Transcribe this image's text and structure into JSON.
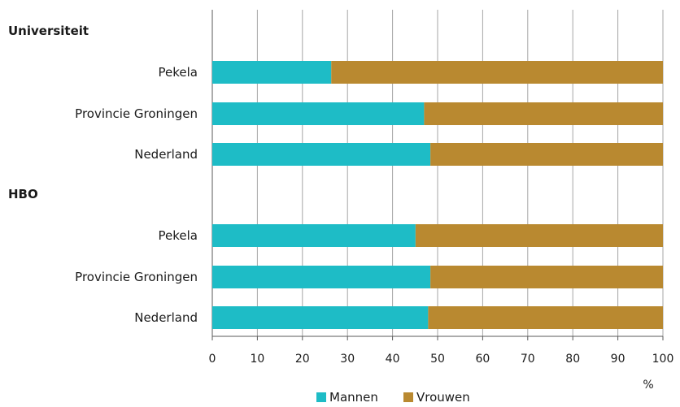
{
  "chart_data": {
    "type": "bar",
    "orientation": "horizontal",
    "stacked": true,
    "groups": [
      {
        "label": "Universiteit",
        "categories": [
          "Pekela",
          "Provincie Groningen",
          "Nederland"
        ],
        "series": [
          {
            "name": "Mannen",
            "values": [
              26.4,
              47.0,
              48.4
            ]
          },
          {
            "name": "Vrouwen",
            "values": [
              73.6,
              53.0,
              51.6
            ]
          }
        ]
      },
      {
        "label": "HBO",
        "categories": [
          "Pekela",
          "Provincie Groningen",
          "Nederland"
        ],
        "series": [
          {
            "name": "Mannen",
            "values": [
              45.1,
              48.4,
              47.9
            ]
          },
          {
            "name": "Vrouwen",
            "values": [
              54.9,
              51.6,
              52.1
            ]
          }
        ]
      }
    ],
    "xlim": [
      0,
      100
    ],
    "xticks": [
      0,
      10,
      20,
      30,
      40,
      50,
      60,
      70,
      80,
      90,
      100
    ],
    "xunit": "%",
    "grid": true,
    "legend_position": "bottom-right",
    "legend": [
      {
        "name": "Mannen",
        "color": "#1ebcc6"
      },
      {
        "name": "Vrouwen",
        "color": "#b98930"
      }
    ]
  }
}
